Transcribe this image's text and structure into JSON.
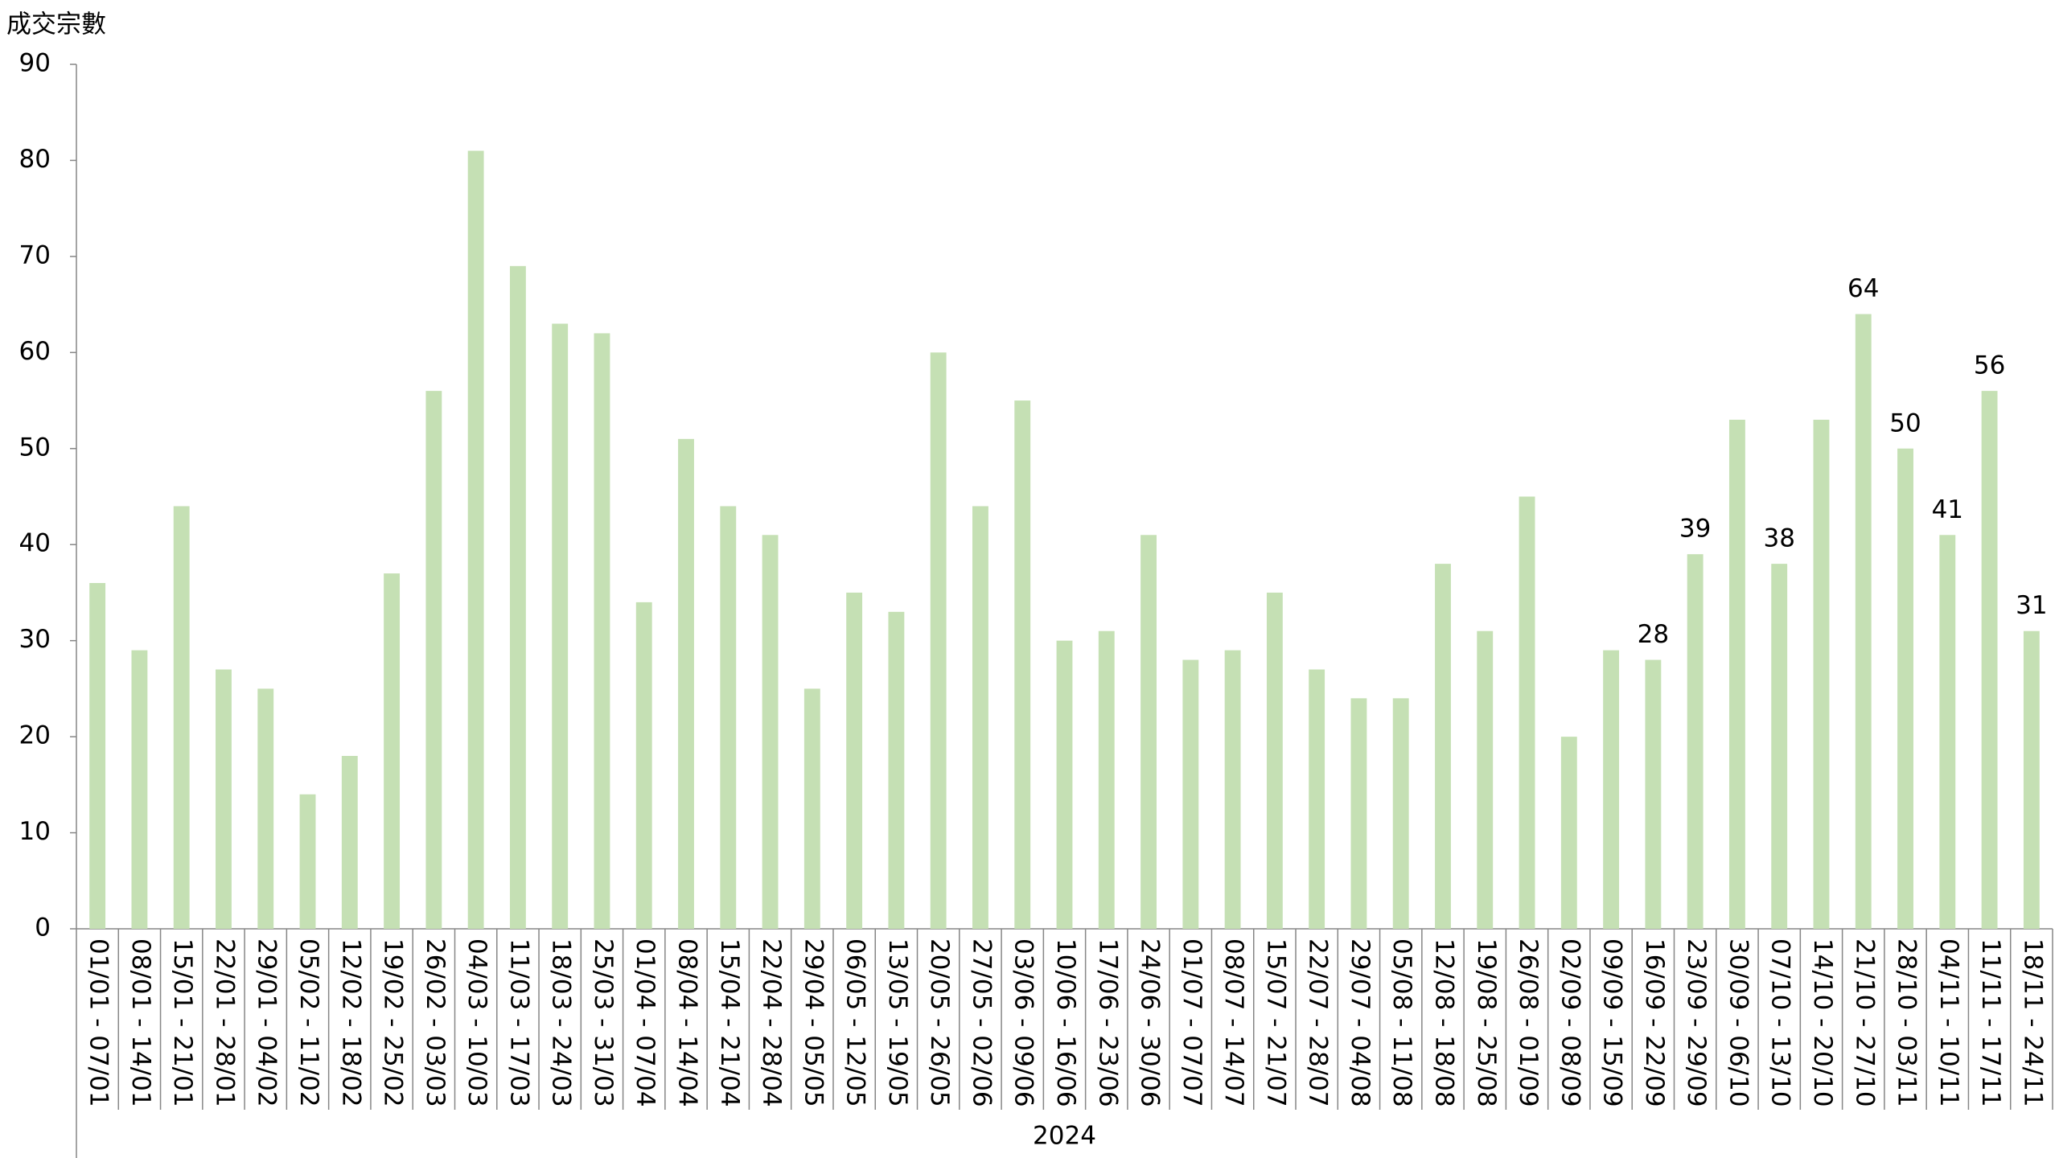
{
  "chart_data": {
    "type": "bar",
    "y_label": "成交宗數",
    "x_group_label": "2024",
    "categories": [
      "01/01 - 07/01",
      "08/01 - 14/01",
      "15/01 - 21/01",
      "22/01 - 28/01",
      "29/01 - 04/02",
      "05/02 - 11/02",
      "12/02 - 18/02",
      "19/02 - 25/02",
      "26/02 - 03/03",
      "04/03 - 10/03",
      "11/03 - 17/03",
      "18/03 - 24/03",
      "25/03 - 31/03",
      "01/04 - 07/04",
      "08/04 - 14/04",
      "15/04 - 21/04",
      "22/04 - 28/04",
      "29/04 - 05/05",
      "06/05 - 12/05",
      "13/05 - 19/05",
      "20/05 - 26/05",
      "27/05 - 02/06",
      "03/06 - 09/06",
      "10/06 - 16/06",
      "17/06 - 23/06",
      "24/06 - 30/06",
      "01/07 - 07/07",
      "08/07 - 14/07",
      "15/07 - 21/07",
      "22/07 - 28/07",
      "29/07 - 04/08",
      "05/08 - 11/08",
      "12/08 - 18/08",
      "19/08 - 25/08",
      "26/08 - 01/09",
      "02/09 - 08/09",
      "09/09 - 15/09",
      "16/09 - 22/09",
      "23/09 - 29/09",
      "30/09 - 06/10",
      "07/10 - 13/10",
      "14/10 - 20/10",
      "21/10 - 27/10",
      "28/10 - 03/11",
      "04/11 - 10/11",
      "11/11 - 17/11",
      "18/11 - 24/11"
    ],
    "values": [
      36,
      29,
      44,
      27,
      25,
      14,
      18,
      37,
      56,
      81,
      69,
      63,
      62,
      34,
      51,
      44,
      41,
      25,
      35,
      33,
      60,
      44,
      55,
      30,
      31,
      41,
      28,
      29,
      35,
      27,
      24,
      24,
      38,
      31,
      45,
      20,
      29,
      28,
      39,
      53,
      38,
      53,
      64,
      50,
      41,
      56,
      31
    ],
    "data_labels": [
      null,
      null,
      null,
      null,
      null,
      null,
      null,
      null,
      null,
      null,
      null,
      null,
      null,
      null,
      null,
      null,
      null,
      null,
      null,
      null,
      null,
      null,
      null,
      null,
      null,
      null,
      null,
      null,
      null,
      null,
      null,
      null,
      null,
      null,
      null,
      null,
      null,
      28,
      39,
      null,
      38,
      null,
      64,
      50,
      41,
      56,
      31
    ],
    "color": "#c5e0b4",
    "ylim": [
      0,
      90
    ],
    "yticks": [
      0,
      10,
      20,
      30,
      40,
      50,
      60,
      70,
      80,
      90
    ],
    "grid": false
  }
}
